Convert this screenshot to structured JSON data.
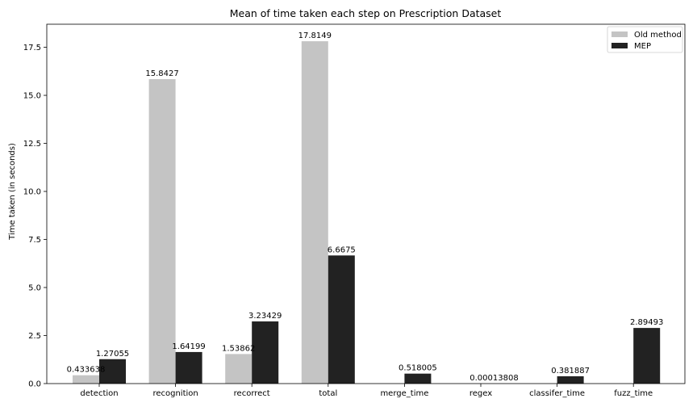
{
  "chart_data": {
    "type": "bar",
    "title": "Mean of time taken each step on Prescription Dataset",
    "xlabel": "",
    "ylabel": "Time taken (in seconds)",
    "ylim": [
      0,
      18.7
    ],
    "yticks": [
      "0.0",
      "2.5",
      "5.0",
      "7.5",
      "10.0",
      "12.5",
      "15.0",
      "17.5"
    ],
    "categories": [
      "detection",
      "recognition",
      "recorrect",
      "total",
      "merge_time",
      "regex",
      "classifer_time",
      "fuzz_time"
    ],
    "series": [
      {
        "name": "Old method",
        "color": "#c4c4c4",
        "values": [
          0.433638,
          15.8427,
          1.53862,
          17.8149,
          null,
          null,
          null,
          null
        ],
        "labels": [
          "0.433638",
          "15.8427",
          "1.53862",
          "17.8149",
          "",
          "",
          "",
          ""
        ]
      },
      {
        "name": "MEP",
        "color": "#222222",
        "values": [
          1.27055,
          1.64199,
          3.23429,
          6.6675,
          0.518005,
          0.00013808,
          0.381887,
          2.89493
        ],
        "labels": [
          "1.27055",
          "1.64199",
          "3.23429",
          "6.6675",
          "0.518005",
          "0.00013808",
          "0.381887",
          "2.89493"
        ]
      }
    ],
    "legend_position": "top-right",
    "grid": false
  }
}
